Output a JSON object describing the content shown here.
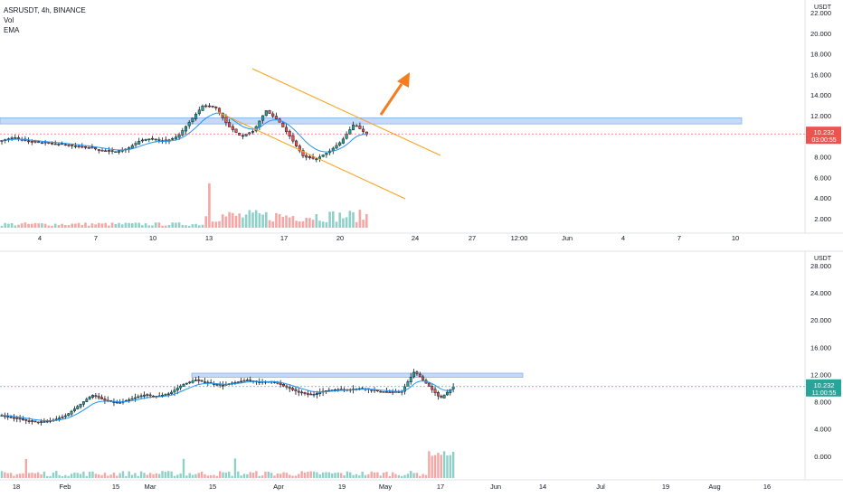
{
  "colors": {
    "up": "#26a69a",
    "down": "#ef5350",
    "ema": "#2196f3",
    "zone": "#bbd3f5",
    "zone_edge": "#6fa0e6",
    "channel": "#f7a21b",
    "arrow": "#f57c1f",
    "axis_text": "#131722",
    "separator": "#e0e3eb"
  },
  "legend": {
    "symbol": "ASRUSDT, 4h, BINANCE",
    "vol": "Vol",
    "ema": "EMA"
  },
  "chart_data": [
    {
      "type": "candlestick",
      "title": "ASRUSDT, 4h, BINANCE",
      "currency": "USDT",
      "xlabel": "",
      "ylabel": "",
      "ylim": [
        1.0,
        23.0
      ],
      "x_tick_labels": [
        "4",
        "7",
        "10",
        "13",
        "17",
        "20",
        "24",
        "27",
        "12:00",
        "Jun",
        "4",
        "7",
        "10"
      ],
      "y_tick_labels": [
        "22.000",
        "20.000",
        "18.000",
        "16.000",
        "14.000",
        "12.000",
        "10.000",
        "8.000",
        "6.000",
        "4.000",
        "2.000"
      ],
      "y_ticks": [
        22,
        20,
        18,
        16,
        14,
        12,
        10,
        8,
        6,
        4,
        2
      ],
      "last_price": {
        "value": 10.232,
        "label": "10.232",
        "countdown": "03:00:55"
      },
      "resistance_zone": [
        11.2,
        11.8
      ],
      "series": [
        {
          "name": "EMA",
          "kind": "ema"
        },
        {
          "name": "Vol",
          "kind": "volume"
        }
      ],
      "annotations": [
        "descending channel",
        "breakout arrow"
      ],
      "grid": false
    },
    {
      "type": "candlestick",
      "title": "",
      "currency": "USDT",
      "xlabel": "",
      "ylabel": "",
      "ylim": [
        -2.0,
        29.0
      ],
      "x_tick_labels": [
        "18",
        "Feb",
        "15",
        "Mar",
        "15",
        "Apr",
        "19",
        "May",
        "17",
        "Jun",
        "14",
        "Jul",
        "19",
        "Aug",
        "16"
      ],
      "y_tick_labels": [
        "28.000",
        "24.000",
        "20.000",
        "16.000",
        "12.000",
        "8.000",
        "4.000",
        "0.000"
      ],
      "y_ticks": [
        28,
        24,
        20,
        16,
        12,
        8,
        4,
        0
      ],
      "last_price": {
        "value": 10.232,
        "label": "10.232",
        "countdown": "11:00:55"
      },
      "resistance_zone": [
        11.6,
        12.2
      ],
      "series": [
        {
          "name": "EMA",
          "kind": "ema"
        },
        {
          "name": "Vol",
          "kind": "volume"
        }
      ],
      "grid": false
    }
  ]
}
